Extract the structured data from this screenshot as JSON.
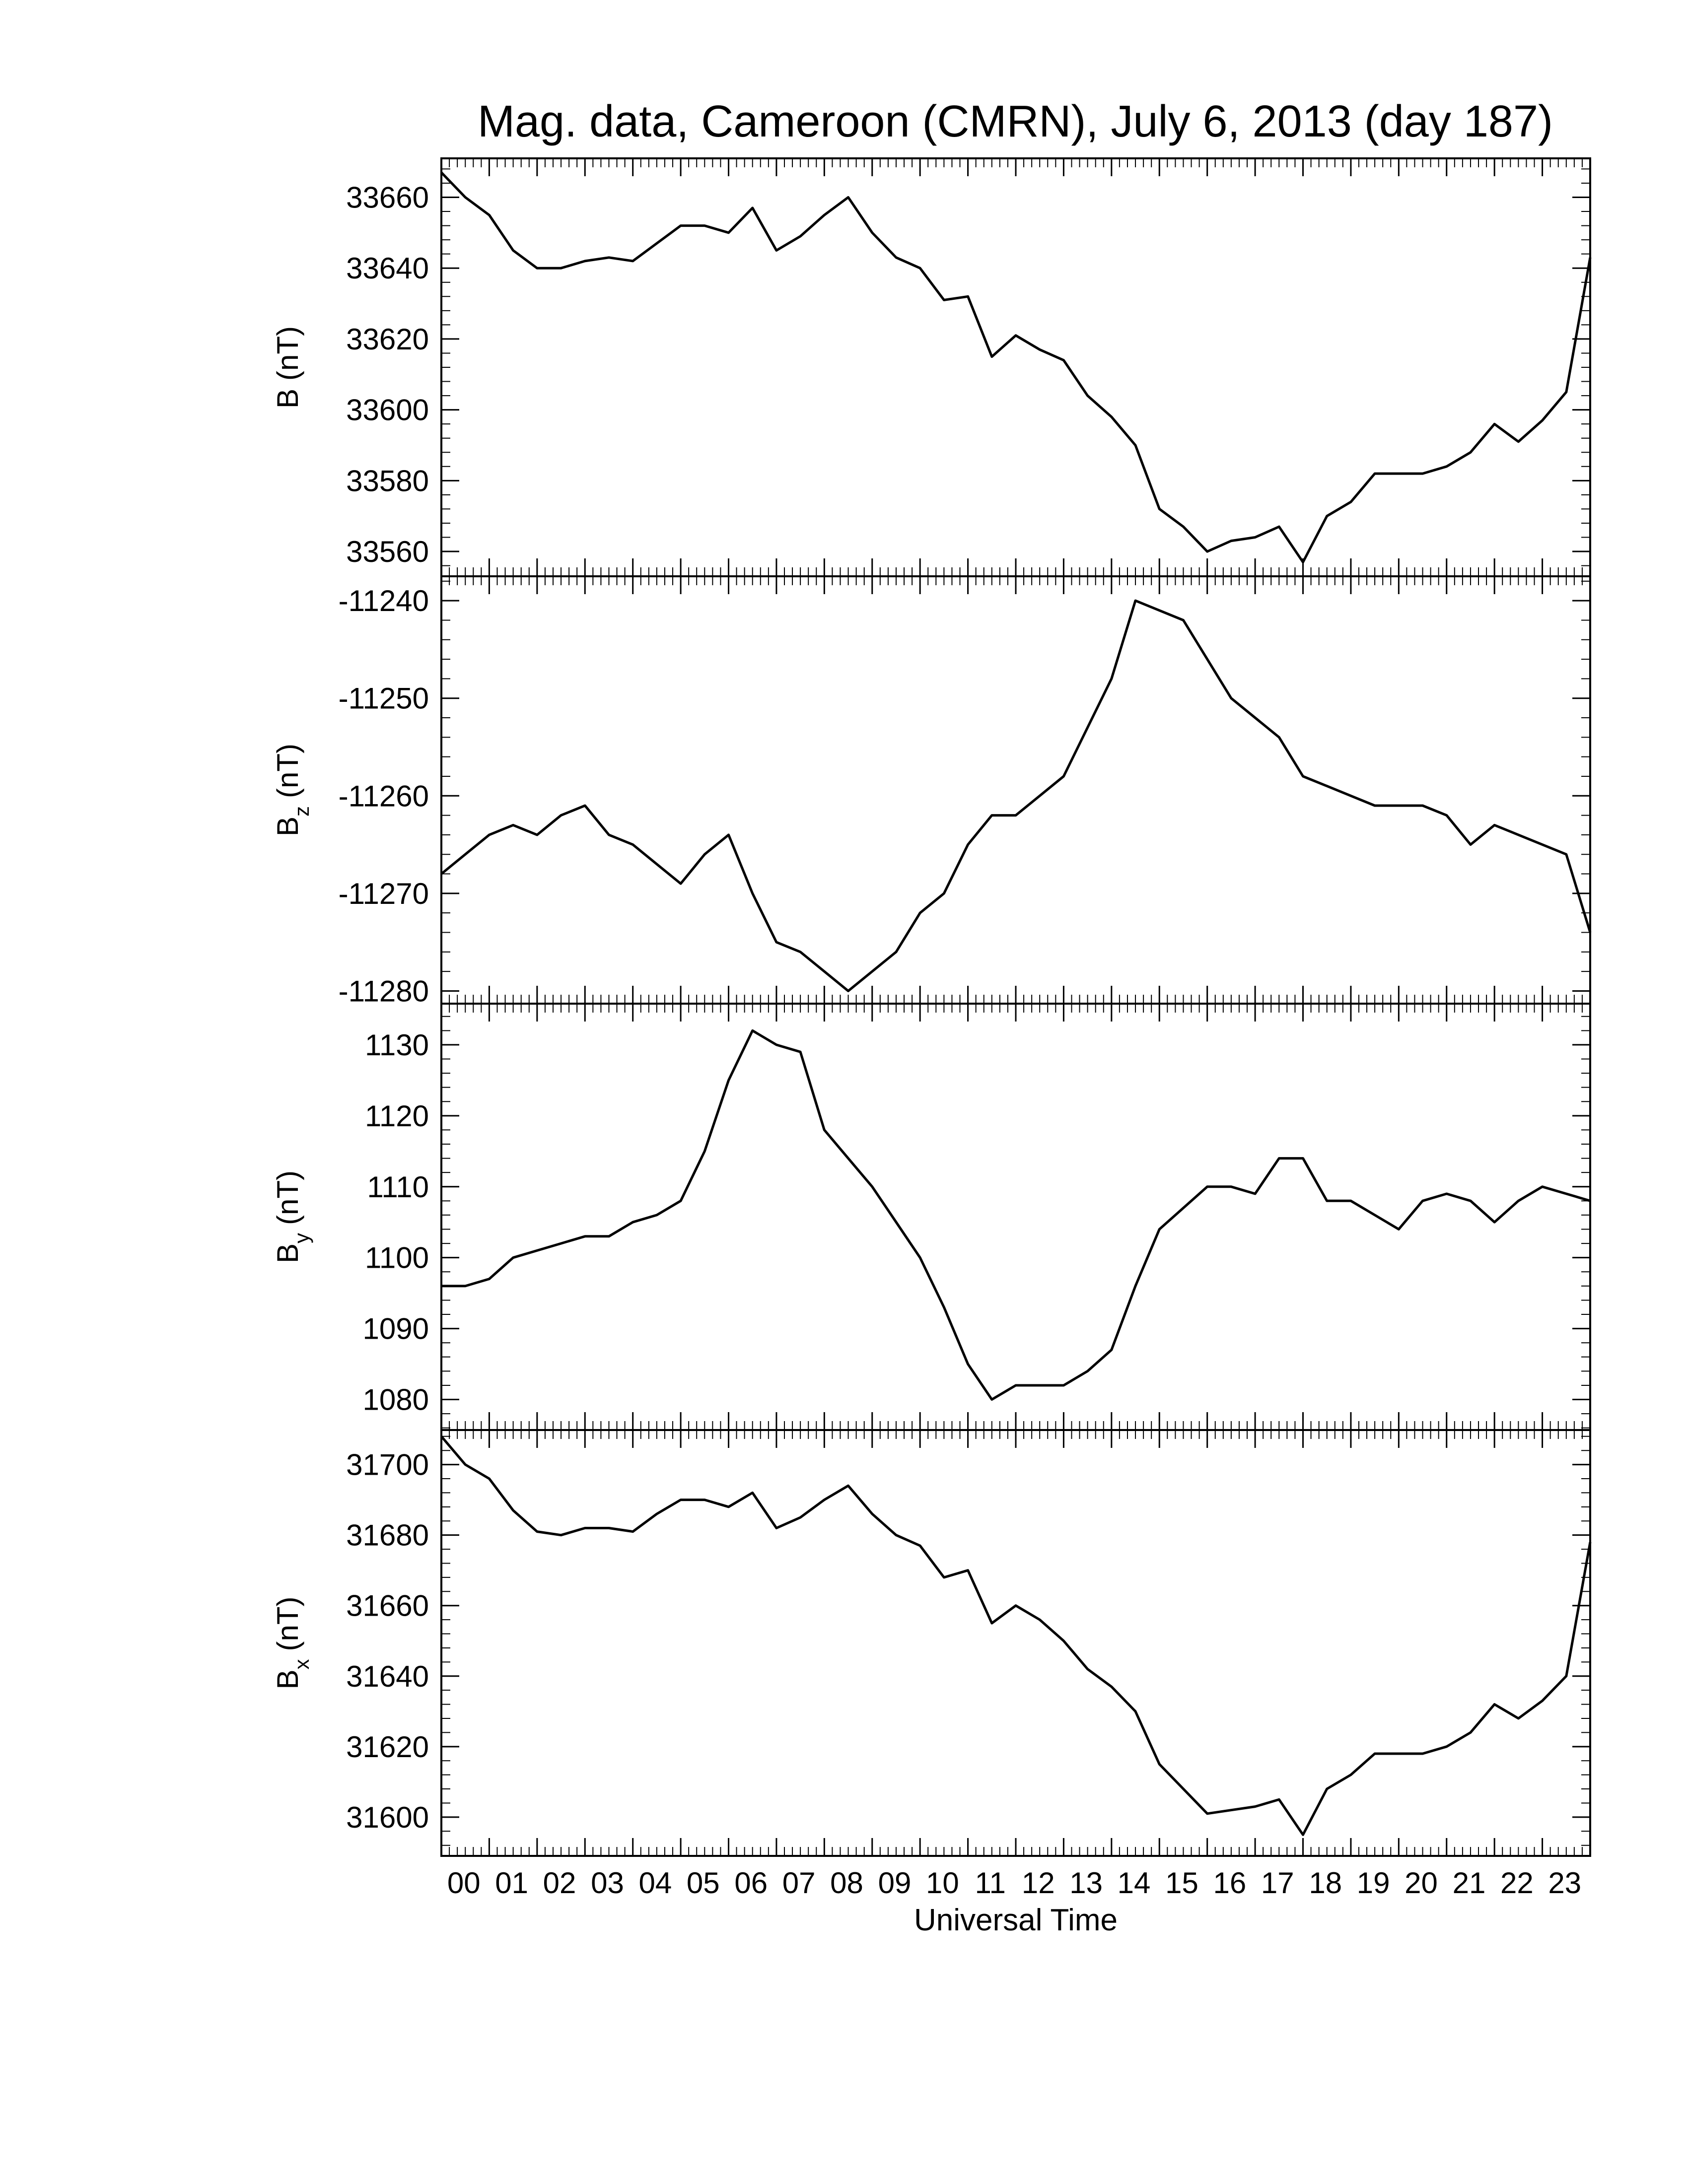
{
  "chart_data": [
    {
      "type": "line",
      "title": "Mag. data, Cameroon (CMRN), July 6, 2013 (day 187)",
      "ylabel": "B",
      "ylabel_unit": "(nT)",
      "color": "#000000",
      "x": [
        0,
        0.5,
        1,
        1.5,
        2,
        2.5,
        3,
        3.5,
        4,
        4.5,
        5,
        5.5,
        6,
        6.5,
        7,
        7.5,
        8,
        8.5,
        9,
        9.5,
        10,
        10.5,
        11,
        11.5,
        12,
        12.5,
        13,
        13.5,
        14,
        14.5,
        15,
        15.5,
        16,
        16.5,
        17,
        17.5,
        18,
        18.5,
        19,
        19.5,
        20,
        20.5,
        21,
        21.5,
        22,
        22.5,
        23,
        23.5,
        24
      ],
      "values": [
        33667,
        33660,
        33655,
        33645,
        33640,
        33640,
        33642,
        33643,
        33642,
        33647,
        33652,
        33652,
        33650,
        33657,
        33645,
        33649,
        33655,
        33660,
        33650,
        33643,
        33640,
        33631,
        33632,
        33615,
        33621,
        33617,
        33614,
        33604,
        33598,
        33590,
        33572,
        33567,
        33560,
        33563,
        33564,
        33567,
        33557,
        33570,
        33574,
        33582,
        33582,
        33582,
        33584,
        33588,
        33596,
        33591,
        33597,
        33605,
        33643
      ],
      "xlim": [
        0,
        24
      ],
      "ylim": [
        33553,
        33671
      ],
      "yticks": [
        33560,
        33580,
        33600,
        33620,
        33640,
        33660
      ]
    },
    {
      "type": "line",
      "ylabel": "B",
      "ylabel_sub": "z",
      "ylabel_unit": "(nT)",
      "color": "#000000",
      "x": [
        0,
        0.5,
        1,
        1.5,
        2,
        2.5,
        3,
        3.5,
        4,
        4.5,
        5,
        5.5,
        6,
        6.5,
        7,
        7.5,
        8,
        8.5,
        9,
        9.5,
        10,
        10.5,
        11,
        11.5,
        12,
        12.5,
        13,
        13.5,
        14,
        14.5,
        15,
        15.5,
        16,
        16.5,
        17,
        17.5,
        18,
        18.5,
        19,
        19.5,
        20,
        20.5,
        21,
        21.5,
        22,
        22.5,
        23,
        23.5,
        24
      ],
      "values": [
        -11268,
        -11266,
        -11264,
        -11263,
        -11264,
        -11262,
        -11261,
        -11264,
        -11265,
        -11267,
        -11269,
        -11266,
        -11264,
        -11270,
        -11275,
        -11276,
        -11278,
        -11280,
        -11278,
        -11276,
        -11272,
        -11270,
        -11265,
        -11262,
        -11262,
        -11260,
        -11258,
        -11253,
        -11248,
        -11240,
        -11241,
        -11242,
        -11246,
        -11250,
        -11252,
        -11254,
        -11258,
        -11259,
        -11260,
        -11261,
        -11261,
        -11261,
        -11262,
        -11265,
        -11263,
        -11264,
        -11265,
        -11266,
        -11274
      ],
      "xlim": [
        0,
        24
      ],
      "ylim": [
        -11281.3,
        -11237.5
      ],
      "yticks": [
        -11280,
        -11270,
        -11260,
        -11250,
        -11240
      ]
    },
    {
      "type": "line",
      "ylabel": "B",
      "ylabel_sub": "y",
      "ylabel_unit": "(nT)",
      "color": "#000000",
      "x": [
        0,
        0.5,
        1,
        1.5,
        2,
        2.5,
        3,
        3.5,
        4,
        4.5,
        5,
        5.5,
        6,
        6.5,
        7,
        7.5,
        8,
        8.5,
        9,
        9.5,
        10,
        10.5,
        11,
        11.5,
        12,
        12.5,
        13,
        13.5,
        14,
        14.5,
        15,
        15.5,
        16,
        16.5,
        17,
        17.5,
        18,
        18.5,
        19,
        19.5,
        20,
        20.5,
        21,
        21.5,
        22,
        22.5,
        23,
        23.5,
        24
      ],
      "values": [
        1096,
        1096,
        1097,
        1100,
        1101,
        1102,
        1103,
        1103,
        1105,
        1106,
        1108,
        1115,
        1125,
        1132,
        1130,
        1129,
        1118,
        1114,
        1110,
        1105,
        1100,
        1093,
        1085,
        1080,
        1082,
        1082,
        1082,
        1084,
        1087,
        1096,
        1104,
        1107,
        1110,
        1110,
        1109,
        1114,
        1114,
        1108,
        1108,
        1106,
        1104,
        1108,
        1109,
        1108,
        1105,
        1108,
        1110,
        1109,
        1108
      ],
      "xlim": [
        0,
        24
      ],
      "ylim": [
        1075.7,
        1135.8
      ],
      "yticks": [
        1080,
        1090,
        1100,
        1110,
        1120,
        1130
      ]
    },
    {
      "type": "line",
      "ylabel": "B",
      "ylabel_sub": "x",
      "ylabel_unit": "(nT)",
      "xlabel": "Universal Time",
      "color": "#000000",
      "x": [
        0,
        0.5,
        1,
        1.5,
        2,
        2.5,
        3,
        3.5,
        4,
        4.5,
        5,
        5.5,
        6,
        6.5,
        7,
        7.5,
        8,
        8.5,
        9,
        9.5,
        10,
        10.5,
        11,
        11.5,
        12,
        12.5,
        13,
        13.5,
        14,
        14.5,
        15,
        15.5,
        16,
        16.5,
        17,
        17.5,
        18,
        18.5,
        19,
        19.5,
        20,
        20.5,
        21,
        21.5,
        22,
        22.5,
        23,
        23.5,
        24
      ],
      "values": [
        31708,
        31700,
        31696,
        31687,
        31681,
        31680,
        31682,
        31682,
        31681,
        31686,
        31690,
        31690,
        31688,
        31692,
        31682,
        31685,
        31690,
        31694,
        31686,
        31680,
        31677,
        31668,
        31670,
        31655,
        31660,
        31656,
        31650,
        31642,
        31637,
        31630,
        31615,
        31608,
        31601,
        31602,
        31603,
        31605,
        31595,
        31608,
        31612,
        31618,
        31618,
        31618,
        31620,
        31624,
        31632,
        31628,
        31633,
        31640,
        31678
      ],
      "xlim": [
        0,
        24
      ],
      "ylim": [
        31589,
        31709.8
      ],
      "yticks": [
        31600,
        31620,
        31640,
        31660,
        31680,
        31700
      ],
      "xticks": [
        {
          "value": 0,
          "label": "00"
        },
        {
          "value": 1,
          "label": "01"
        },
        {
          "value": 2,
          "label": "02"
        },
        {
          "value": 3,
          "label": "03"
        },
        {
          "value": 4,
          "label": "04"
        },
        {
          "value": 5,
          "label": "05"
        },
        {
          "value": 6,
          "label": "06"
        },
        {
          "value": 7,
          "label": "07"
        },
        {
          "value": 8,
          "label": "08"
        },
        {
          "value": 9,
          "label": "09"
        },
        {
          "value": 10,
          "label": "10"
        },
        {
          "value": 11,
          "label": "11"
        },
        {
          "value": 12,
          "label": "12"
        },
        {
          "value": 13,
          "label": "13"
        },
        {
          "value": 14,
          "label": "14"
        },
        {
          "value": 15,
          "label": "15"
        },
        {
          "value": 16,
          "label": "16"
        },
        {
          "value": 17,
          "label": "17"
        },
        {
          "value": 18,
          "label": "18"
        },
        {
          "value": 19,
          "label": "19"
        },
        {
          "value": 20,
          "label": "20"
        },
        {
          "value": 21,
          "label": "21"
        },
        {
          "value": 22,
          "label": "22"
        },
        {
          "value": 23,
          "label": "23"
        }
      ]
    }
  ]
}
